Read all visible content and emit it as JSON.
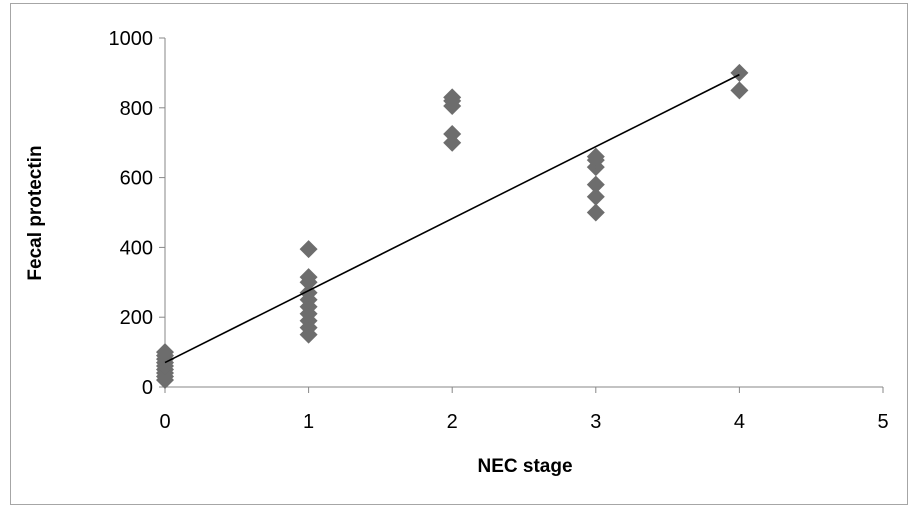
{
  "chart_data": {
    "type": "scatter",
    "xlabel": "NEC stage",
    "ylabel": "Fecal protectin",
    "xlim": [
      0,
      5
    ],
    "ylim": [
      0,
      1000
    ],
    "x_ticks": [
      0,
      1,
      2,
      3,
      4,
      5
    ],
    "y_ticks": [
      0,
      200,
      400,
      600,
      800,
      1000
    ],
    "grid": false,
    "legend": "none",
    "marker": "diamond",
    "marker_color": "#6d6d6d",
    "series": [
      {
        "points": [
          [
            0,
            20
          ],
          [
            0,
            30
          ],
          [
            0,
            40
          ],
          [
            0,
            50
          ],
          [
            0,
            60
          ],
          [
            0,
            70
          ],
          [
            0,
            80
          ],
          [
            0,
            90
          ],
          [
            0,
            100
          ],
          [
            1,
            150
          ],
          [
            1,
            170
          ],
          [
            1,
            190
          ],
          [
            1,
            210
          ],
          [
            1,
            230
          ],
          [
            1,
            250
          ],
          [
            1,
            270
          ],
          [
            1,
            300
          ],
          [
            1,
            315
          ],
          [
            1,
            395
          ],
          [
            2,
            700
          ],
          [
            2,
            725
          ],
          [
            2,
            805
          ],
          [
            2,
            820
          ],
          [
            2,
            830
          ],
          [
            3,
            500
          ],
          [
            3,
            545
          ],
          [
            3,
            580
          ],
          [
            3,
            630
          ],
          [
            3,
            650
          ],
          [
            3,
            660
          ],
          [
            4,
            850
          ],
          [
            4,
            900
          ]
        ]
      }
    ],
    "trendline": {
      "type": "linear",
      "color": "#000000",
      "x": [
        0,
        4
      ],
      "y": [
        70,
        895
      ]
    }
  }
}
